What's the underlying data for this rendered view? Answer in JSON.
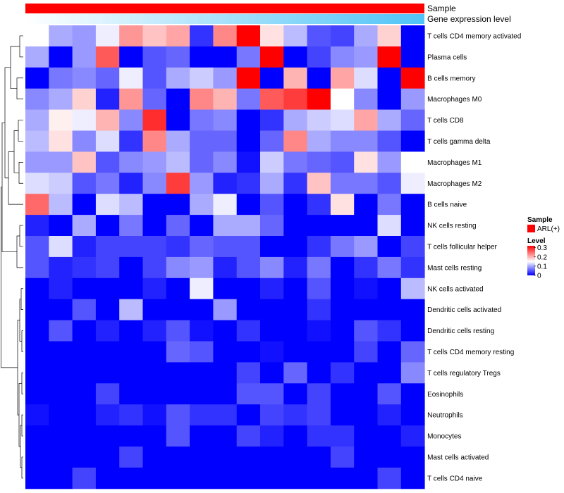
{
  "chart_data": {
    "type": "heatmap",
    "annotations": [
      {
        "name": "Sample",
        "color": "#ff0000"
      },
      {
        "name": "Gene expression level",
        "gradient": [
          "#ffffff",
          "#4fc3f7"
        ]
      }
    ],
    "rows": [
      "T cells CD4 memory activated",
      "Plasma cells",
      "B cells memory",
      "Macrophages M0",
      "T cells CD8",
      "T cells gamma delta",
      "Macrophages M1",
      "Macrophages M2",
      "B cells naive",
      "NK cells resting",
      "T cells follicular helper",
      "Mast cells resting",
      "NK cells activated",
      "Dendritic cells activated",
      "Dendritic cells resting",
      "T cells CD4 memory resting",
      "T cells regulatory  Tregs",
      "Eosinophils",
      "Neutrophils",
      "Monocytes",
      "Mast cells activated",
      "T cells CD4 naive"
    ],
    "values": [
      [
        0.15,
        0.1,
        0.09,
        0.14,
        0.22,
        0.19,
        0.21,
        0.03,
        0.23,
        0.32,
        0.17,
        0.11,
        0.05,
        0.04,
        0.1,
        0.18,
        0.0
      ],
      [
        0.1,
        0.0,
        0.09,
        0.26,
        0.0,
        0.05,
        0.06,
        0.0,
        0.0,
        0.07,
        0.32,
        0.0,
        0.04,
        0.08,
        0.09,
        0.32,
        0.0
      ],
      [
        0.0,
        0.07,
        0.08,
        0.06,
        0.14,
        0.05,
        0.1,
        0.12,
        0.09,
        0.32,
        0.0,
        0.2,
        0.0,
        0.21,
        0.13,
        0.0,
        0.32
      ],
      [
        0.08,
        0.1,
        0.18,
        0.02,
        0.22,
        0.06,
        0.0,
        0.23,
        0.2,
        0.07,
        0.26,
        0.28,
        0.32,
        0.15,
        0.08,
        0.0,
        0.09
      ],
      [
        0.1,
        0.16,
        0.14,
        0.2,
        0.08,
        0.29,
        0.0,
        0.07,
        0.08,
        0.0,
        0.03,
        0.1,
        0.12,
        0.13,
        0.21,
        0.1,
        0.06
      ],
      [
        0.11,
        0.17,
        0.08,
        0.13,
        0.03,
        0.23,
        0.1,
        0.06,
        0.06,
        0.0,
        0.06,
        0.23,
        0.1,
        0.08,
        0.08,
        0.05,
        0.0
      ],
      [
        0.09,
        0.09,
        0.19,
        0.05,
        0.08,
        0.09,
        0.11,
        0.06,
        0.08,
        0.01,
        0.12,
        0.07,
        0.06,
        0.05,
        0.17,
        0.09,
        0.15
      ],
      [
        0.13,
        0.12,
        0.05,
        0.07,
        0.02,
        0.08,
        0.28,
        0.09,
        0.02,
        0.03,
        0.1,
        0.03,
        0.19,
        0.07,
        0.07,
        0.05,
        0.14
      ],
      [
        0.25,
        0.11,
        0.0,
        0.13,
        0.11,
        0.0,
        0.0,
        0.1,
        0.14,
        0.0,
        0.05,
        0.0,
        0.03,
        0.17,
        0.0,
        0.07,
        0.0
      ],
      [
        0.02,
        0.0,
        0.1,
        0.0,
        0.07,
        0.0,
        0.06,
        0.0,
        0.1,
        0.1,
        0.06,
        0.0,
        0.0,
        0.0,
        0.0,
        0.13,
        0.0
      ],
      [
        0.05,
        0.13,
        0.02,
        0.04,
        0.04,
        0.04,
        0.03,
        0.06,
        0.05,
        0.05,
        0.0,
        0.0,
        0.03,
        0.07,
        0.09,
        0.0,
        0.04
      ],
      [
        0.05,
        0.02,
        0.03,
        0.04,
        0.0,
        0.04,
        0.08,
        0.09,
        0.02,
        0.05,
        0.08,
        0.02,
        0.07,
        0.0,
        0.03,
        0.07,
        0.03
      ],
      [
        0.0,
        0.02,
        0.0,
        0.0,
        0.0,
        0.02,
        0.0,
        0.14,
        0.0,
        0.0,
        0.02,
        0.0,
        0.05,
        0.0,
        0.01,
        0.0,
        0.11
      ],
      [
        0.0,
        0.0,
        0.05,
        0.0,
        0.11,
        0.0,
        0.0,
        0.0,
        0.09,
        0.0,
        0.0,
        0.0,
        0.03,
        0.0,
        0.0,
        0.0,
        0.0
      ],
      [
        0.0,
        0.05,
        0.0,
        0.02,
        0.0,
        0.02,
        0.05,
        0.01,
        0.0,
        0.03,
        0.0,
        0.0,
        0.01,
        0.0,
        0.05,
        0.03,
        0.0
      ],
      [
        0.0,
        0.0,
        0.0,
        0.0,
        0.0,
        0.0,
        0.06,
        0.05,
        0.0,
        0.0,
        0.01,
        0.0,
        0.0,
        0.0,
        0.04,
        0.0,
        0.06
      ],
      [
        0.0,
        0.0,
        0.0,
        0.0,
        0.0,
        0.0,
        0.0,
        0.0,
        0.0,
        0.04,
        0.0,
        0.06,
        0.0,
        0.03,
        0.0,
        0.0,
        0.08
      ],
      [
        0.0,
        0.0,
        0.0,
        0.04,
        0.0,
        0.0,
        0.0,
        0.0,
        0.0,
        0.05,
        0.05,
        0.0,
        0.04,
        0.0,
        0.0,
        0.05,
        0.0
      ],
      [
        0.01,
        0.0,
        0.0,
        0.02,
        0.03,
        0.01,
        0.05,
        0.03,
        0.03,
        0.0,
        0.04,
        0.03,
        0.04,
        0.0,
        0.0,
        0.02,
        0.0
      ],
      [
        0.0,
        0.0,
        0.0,
        0.0,
        0.0,
        0.0,
        0.05,
        0.0,
        0.0,
        0.04,
        0.02,
        0.0,
        0.03,
        0.03,
        0.0,
        0.0,
        0.02
      ],
      [
        0.0,
        0.0,
        0.0,
        0.0,
        0.04,
        0.0,
        0.0,
        0.0,
        0.0,
        0.0,
        0.0,
        0.0,
        0.0,
        0.04,
        0.0,
        0.0,
        0.0
      ],
      [
        0.0,
        0.0,
        0.04,
        0.0,
        0.0,
        0.0,
        0.0,
        0.0,
        0.0,
        0.0,
        0.0,
        0.0,
        0.0,
        0.0,
        0.0,
        0.04,
        0.0
      ]
    ],
    "color_scale": {
      "low": "#0000ff",
      "mid": "#ffffff",
      "high": "#ff0000",
      "min": 0,
      "mid_value": 0.15,
      "max": 0.32
    },
    "legend": {
      "sample_title": "Sample",
      "sample_label": "ARL(+)",
      "sample_color": "#ff0000",
      "level_title": "Level",
      "level_ticks": [
        "0.3",
        "0.2",
        "0.1",
        "0"
      ],
      "level_tick_values": [
        0.3,
        0.2,
        0.1,
        0
      ],
      "placement": "right"
    },
    "dendrogram": "left"
  }
}
